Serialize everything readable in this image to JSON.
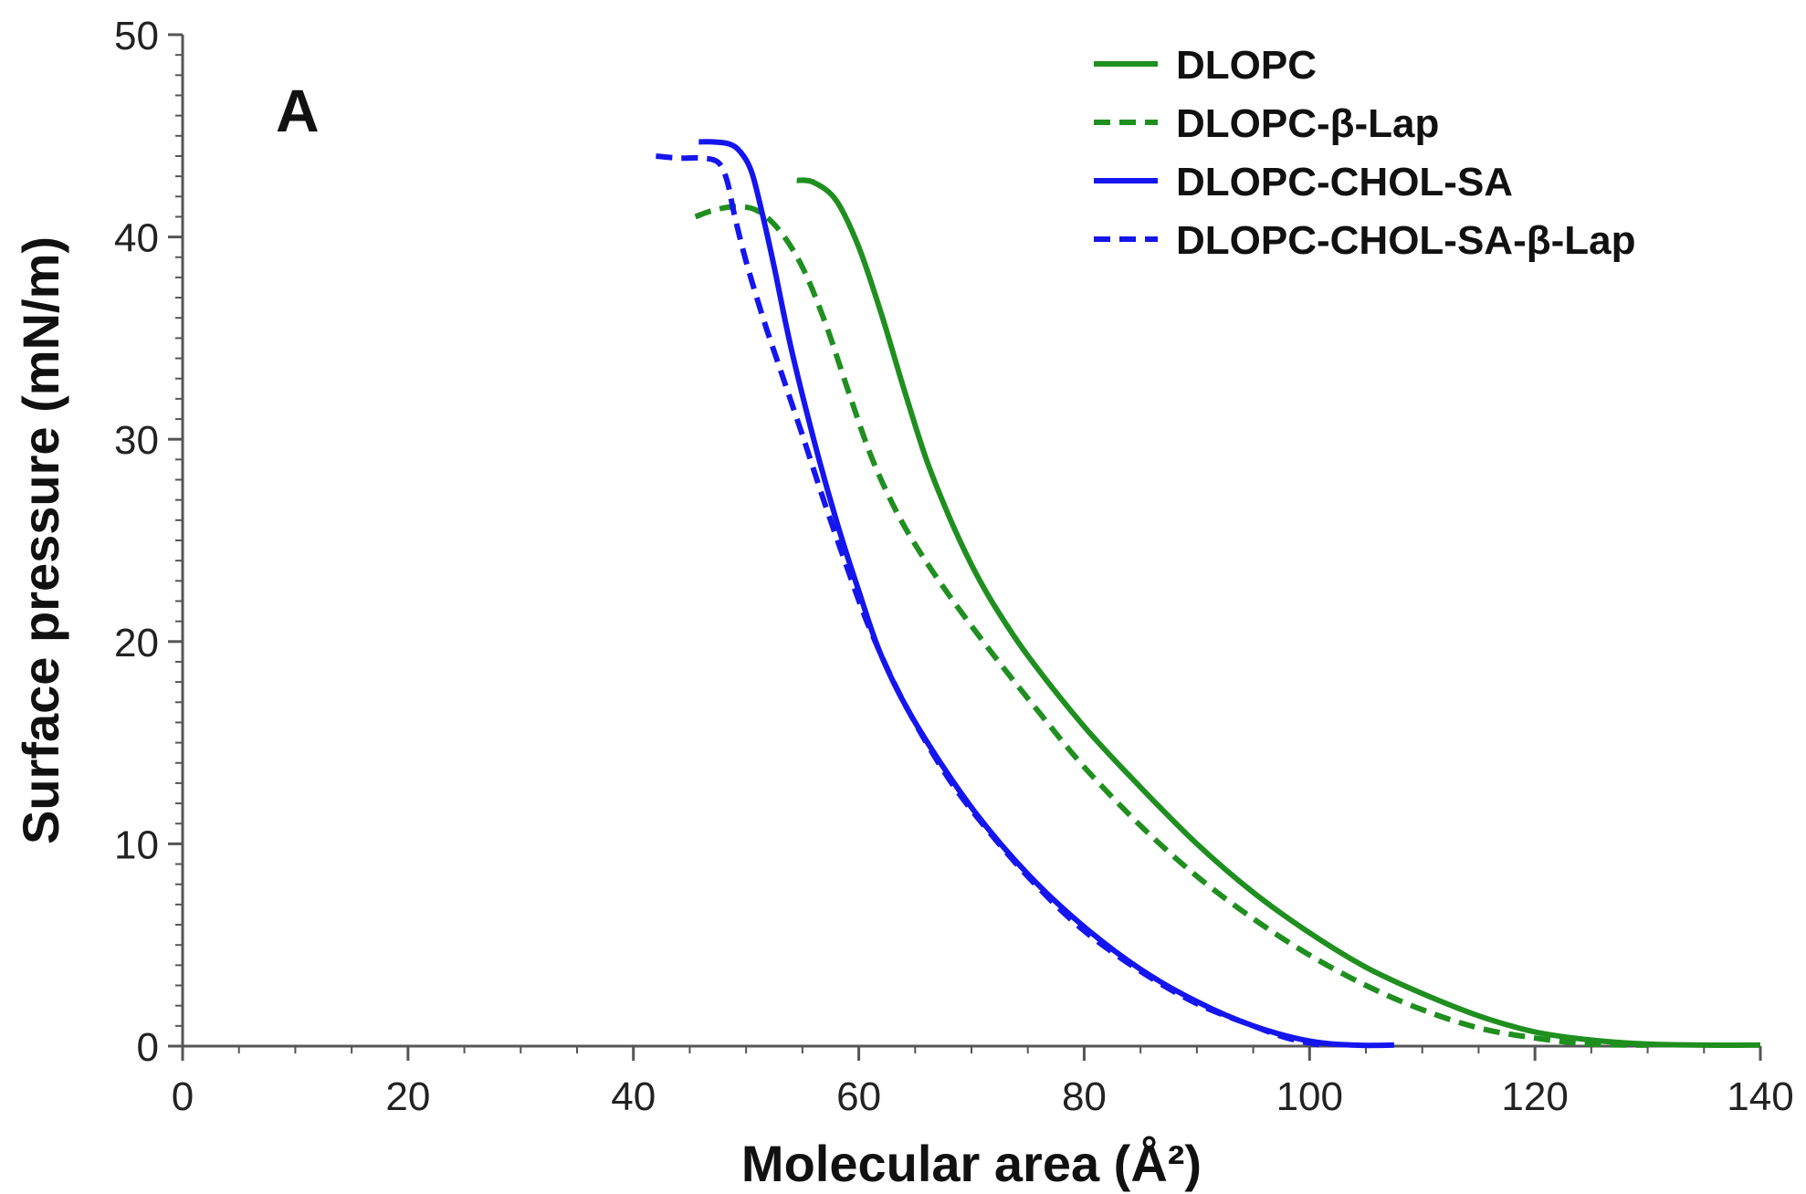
{
  "chart_data": {
    "type": "line",
    "panel_label": "A",
    "title": "",
    "xlabel": "Molecular area (Å²)",
    "ylabel": "Surface pressure (mN/m)",
    "xlim": [
      0,
      140
    ],
    "ylim": [
      0,
      50
    ],
    "xticks": [
      "0",
      "20",
      "40",
      "60",
      "80",
      "100",
      "120",
      "140"
    ],
    "yticks": [
      "0",
      "10",
      "20",
      "30",
      "40",
      "50"
    ],
    "grid": false,
    "legend_position": "top-right",
    "series": [
      {
        "name": "DLOPC",
        "color": "#1f8f1f",
        "dash": "solid",
        "points": [
          [
            54.5,
            42.8
          ],
          [
            56,
            42.7
          ],
          [
            58,
            41.8
          ],
          [
            60,
            39.5
          ],
          [
            62,
            36.2
          ],
          [
            64,
            32.5
          ],
          [
            66,
            29.0
          ],
          [
            68,
            26.2
          ],
          [
            70,
            23.8
          ],
          [
            72,
            21.8
          ],
          [
            75,
            19.3
          ],
          [
            80,
            15.8
          ],
          [
            85,
            12.8
          ],
          [
            90,
            10.0
          ],
          [
            95,
            7.6
          ],
          [
            100,
            5.6
          ],
          [
            105,
            3.9
          ],
          [
            110,
            2.6
          ],
          [
            115,
            1.5
          ],
          [
            120,
            0.7
          ],
          [
            125,
            0.3
          ],
          [
            130,
            0.1
          ],
          [
            135,
            0.05
          ],
          [
            140,
            0.05
          ]
        ]
      },
      {
        "name": "DLOPC-β-Lap",
        "color": "#1f8f1f",
        "dash": "dashed",
        "points": [
          [
            45.5,
            41.0
          ],
          [
            47,
            41.3
          ],
          [
            49,
            41.5
          ],
          [
            51,
            41.3
          ],
          [
            53,
            40.3
          ],
          [
            55,
            38.5
          ],
          [
            57,
            35.8
          ],
          [
            59,
            32.5
          ],
          [
            61,
            29.3
          ],
          [
            63,
            26.8
          ],
          [
            65,
            24.8
          ],
          [
            68,
            22.3
          ],
          [
            72,
            19.3
          ],
          [
            76,
            16.5
          ],
          [
            80,
            13.8
          ],
          [
            85,
            10.9
          ],
          [
            90,
            8.4
          ],
          [
            95,
            6.3
          ],
          [
            100,
            4.5
          ],
          [
            105,
            3.0
          ],
          [
            110,
            1.8
          ],
          [
            115,
            0.9
          ],
          [
            120,
            0.4
          ],
          [
            125,
            0.1
          ],
          [
            130,
            0.05
          ]
        ]
      },
      {
        "name": "DLOPC-CHOL-SA",
        "color": "#1515ee",
        "dash": "solid",
        "points": [
          [
            45.8,
            44.7
          ],
          [
            47,
            44.7
          ],
          [
            48.5,
            44.6
          ],
          [
            49.5,
            44.2
          ],
          [
            50.5,
            43.2
          ],
          [
            51.5,
            41.0
          ],
          [
            52.5,
            38.5
          ],
          [
            54,
            34.5
          ],
          [
            56,
            30.0
          ],
          [
            58,
            26.0
          ],
          [
            60,
            22.5
          ],
          [
            62,
            19.3
          ],
          [
            65,
            16.0
          ],
          [
            70,
            11.8
          ],
          [
            75,
            8.5
          ],
          [
            80,
            5.9
          ],
          [
            85,
            3.8
          ],
          [
            90,
            2.2
          ],
          [
            95,
            1.0
          ],
          [
            100,
            0.25
          ],
          [
            104,
            0.05
          ],
          [
            107.5,
            0.05
          ]
        ]
      },
      {
        "name": "DLOPC-CHOL-SA-β-Lap",
        "color": "#1515ee",
        "dash": "dashed",
        "points": [
          [
            42,
            44.0
          ],
          [
            44,
            43.9
          ],
          [
            46,
            43.9
          ],
          [
            47.5,
            43.7
          ],
          [
            48.3,
            42.8
          ],
          [
            49,
            41.0
          ],
          [
            50,
            38.8
          ],
          [
            51.5,
            36.0
          ],
          [
            53,
            33.5
          ],
          [
            55,
            30.2
          ],
          [
            57,
            26.8
          ],
          [
            59,
            23.6
          ],
          [
            61,
            20.6
          ],
          [
            64,
            17.0
          ],
          [
            68,
            13.2
          ],
          [
            72,
            10.3
          ],
          [
            76,
            7.8
          ],
          [
            80,
            5.7
          ],
          [
            85,
            3.7
          ],
          [
            90,
            2.1
          ],
          [
            95,
            1.0
          ],
          [
            98,
            0.4
          ],
          [
            101,
            0.05
          ]
        ]
      }
    ]
  }
}
